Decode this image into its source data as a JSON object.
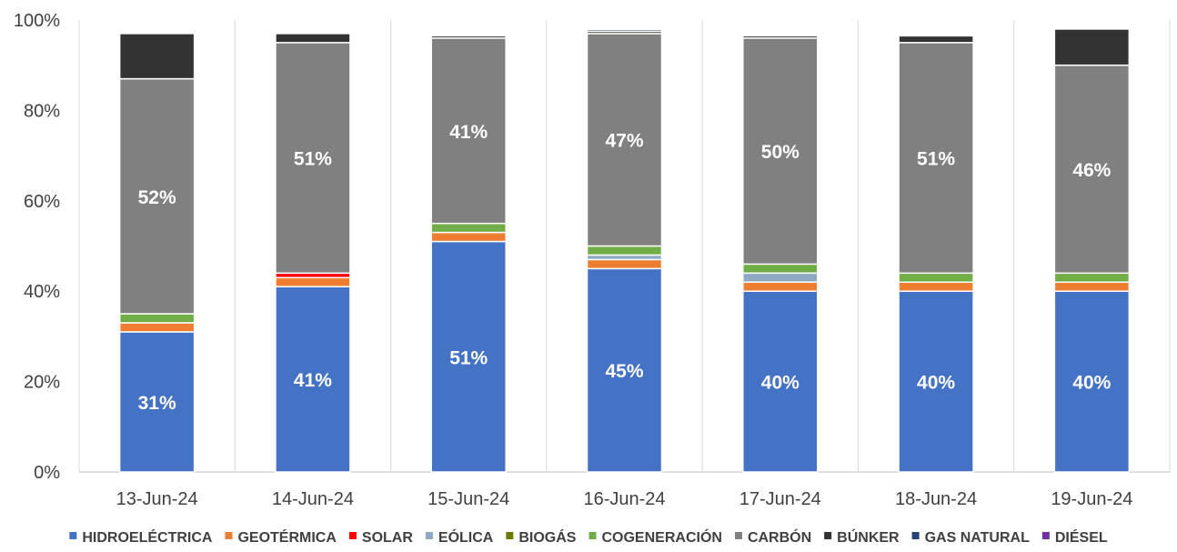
{
  "chart_data": {
    "type": "bar",
    "stacked": true,
    "percent": true,
    "categories": [
      "13-Jun-24",
      "14-Jun-24",
      "15-Jun-24",
      "16-Jun-24",
      "17-Jun-24",
      "18-Jun-24",
      "19-Jun-24"
    ],
    "ylim": [
      0,
      100
    ],
    "yticks": [
      "0%",
      "20%",
      "40%",
      "60%",
      "80%",
      "100%"
    ],
    "grid": "vertical",
    "legend_position": "bottom",
    "series": [
      {
        "name": "HIDROELÉCTRICA",
        "color": "#4472C4",
        "values": [
          31,
          41,
          51,
          45,
          40,
          40,
          40
        ],
        "labels": [
          "31%",
          "41%",
          "51%",
          "45%",
          "40%",
          "40%",
          "40%"
        ]
      },
      {
        "name": "GEOTÉRMICA",
        "color": "#ED7D31",
        "values": [
          2,
          2,
          2,
          2,
          2,
          2,
          2
        ]
      },
      {
        "name": "SOLAR",
        "color": "#FF0000",
        "values": [
          0,
          1,
          0,
          0,
          0,
          0,
          0
        ]
      },
      {
        "name": "EÓLICA",
        "color": "#8EA9C1",
        "values": [
          0,
          0,
          0,
          1,
          2,
          0,
          0
        ]
      },
      {
        "name": "BIOGÁS",
        "color": "#6B7A00",
        "values": [
          0,
          0,
          0,
          0,
          0,
          0,
          0
        ]
      },
      {
        "name": "COGENERACIÓN",
        "color": "#70AD47",
        "values": [
          2,
          0,
          2,
          2,
          2,
          2,
          2
        ]
      },
      {
        "name": "CARBÓN",
        "color": "#808080",
        "values": [
          52,
          51,
          41,
          47,
          50,
          51,
          46
        ],
        "labels": [
          "52%",
          "51%",
          "41%",
          "47%",
          "50%",
          "51%",
          "46%"
        ]
      },
      {
        "name": "BÚNKER",
        "color": "#333333",
        "values": [
          10,
          2,
          0.5,
          0.5,
          0.5,
          1.5,
          8
        ]
      },
      {
        "name": "GAS NATURAL",
        "color": "#264478",
        "values": [
          0,
          0,
          0,
          0.4,
          0,
          0,
          0
        ]
      },
      {
        "name": "DIÉSEL",
        "color": "#7030A0",
        "values": [
          0,
          0,
          0,
          0,
          0,
          0,
          0
        ]
      }
    ]
  }
}
